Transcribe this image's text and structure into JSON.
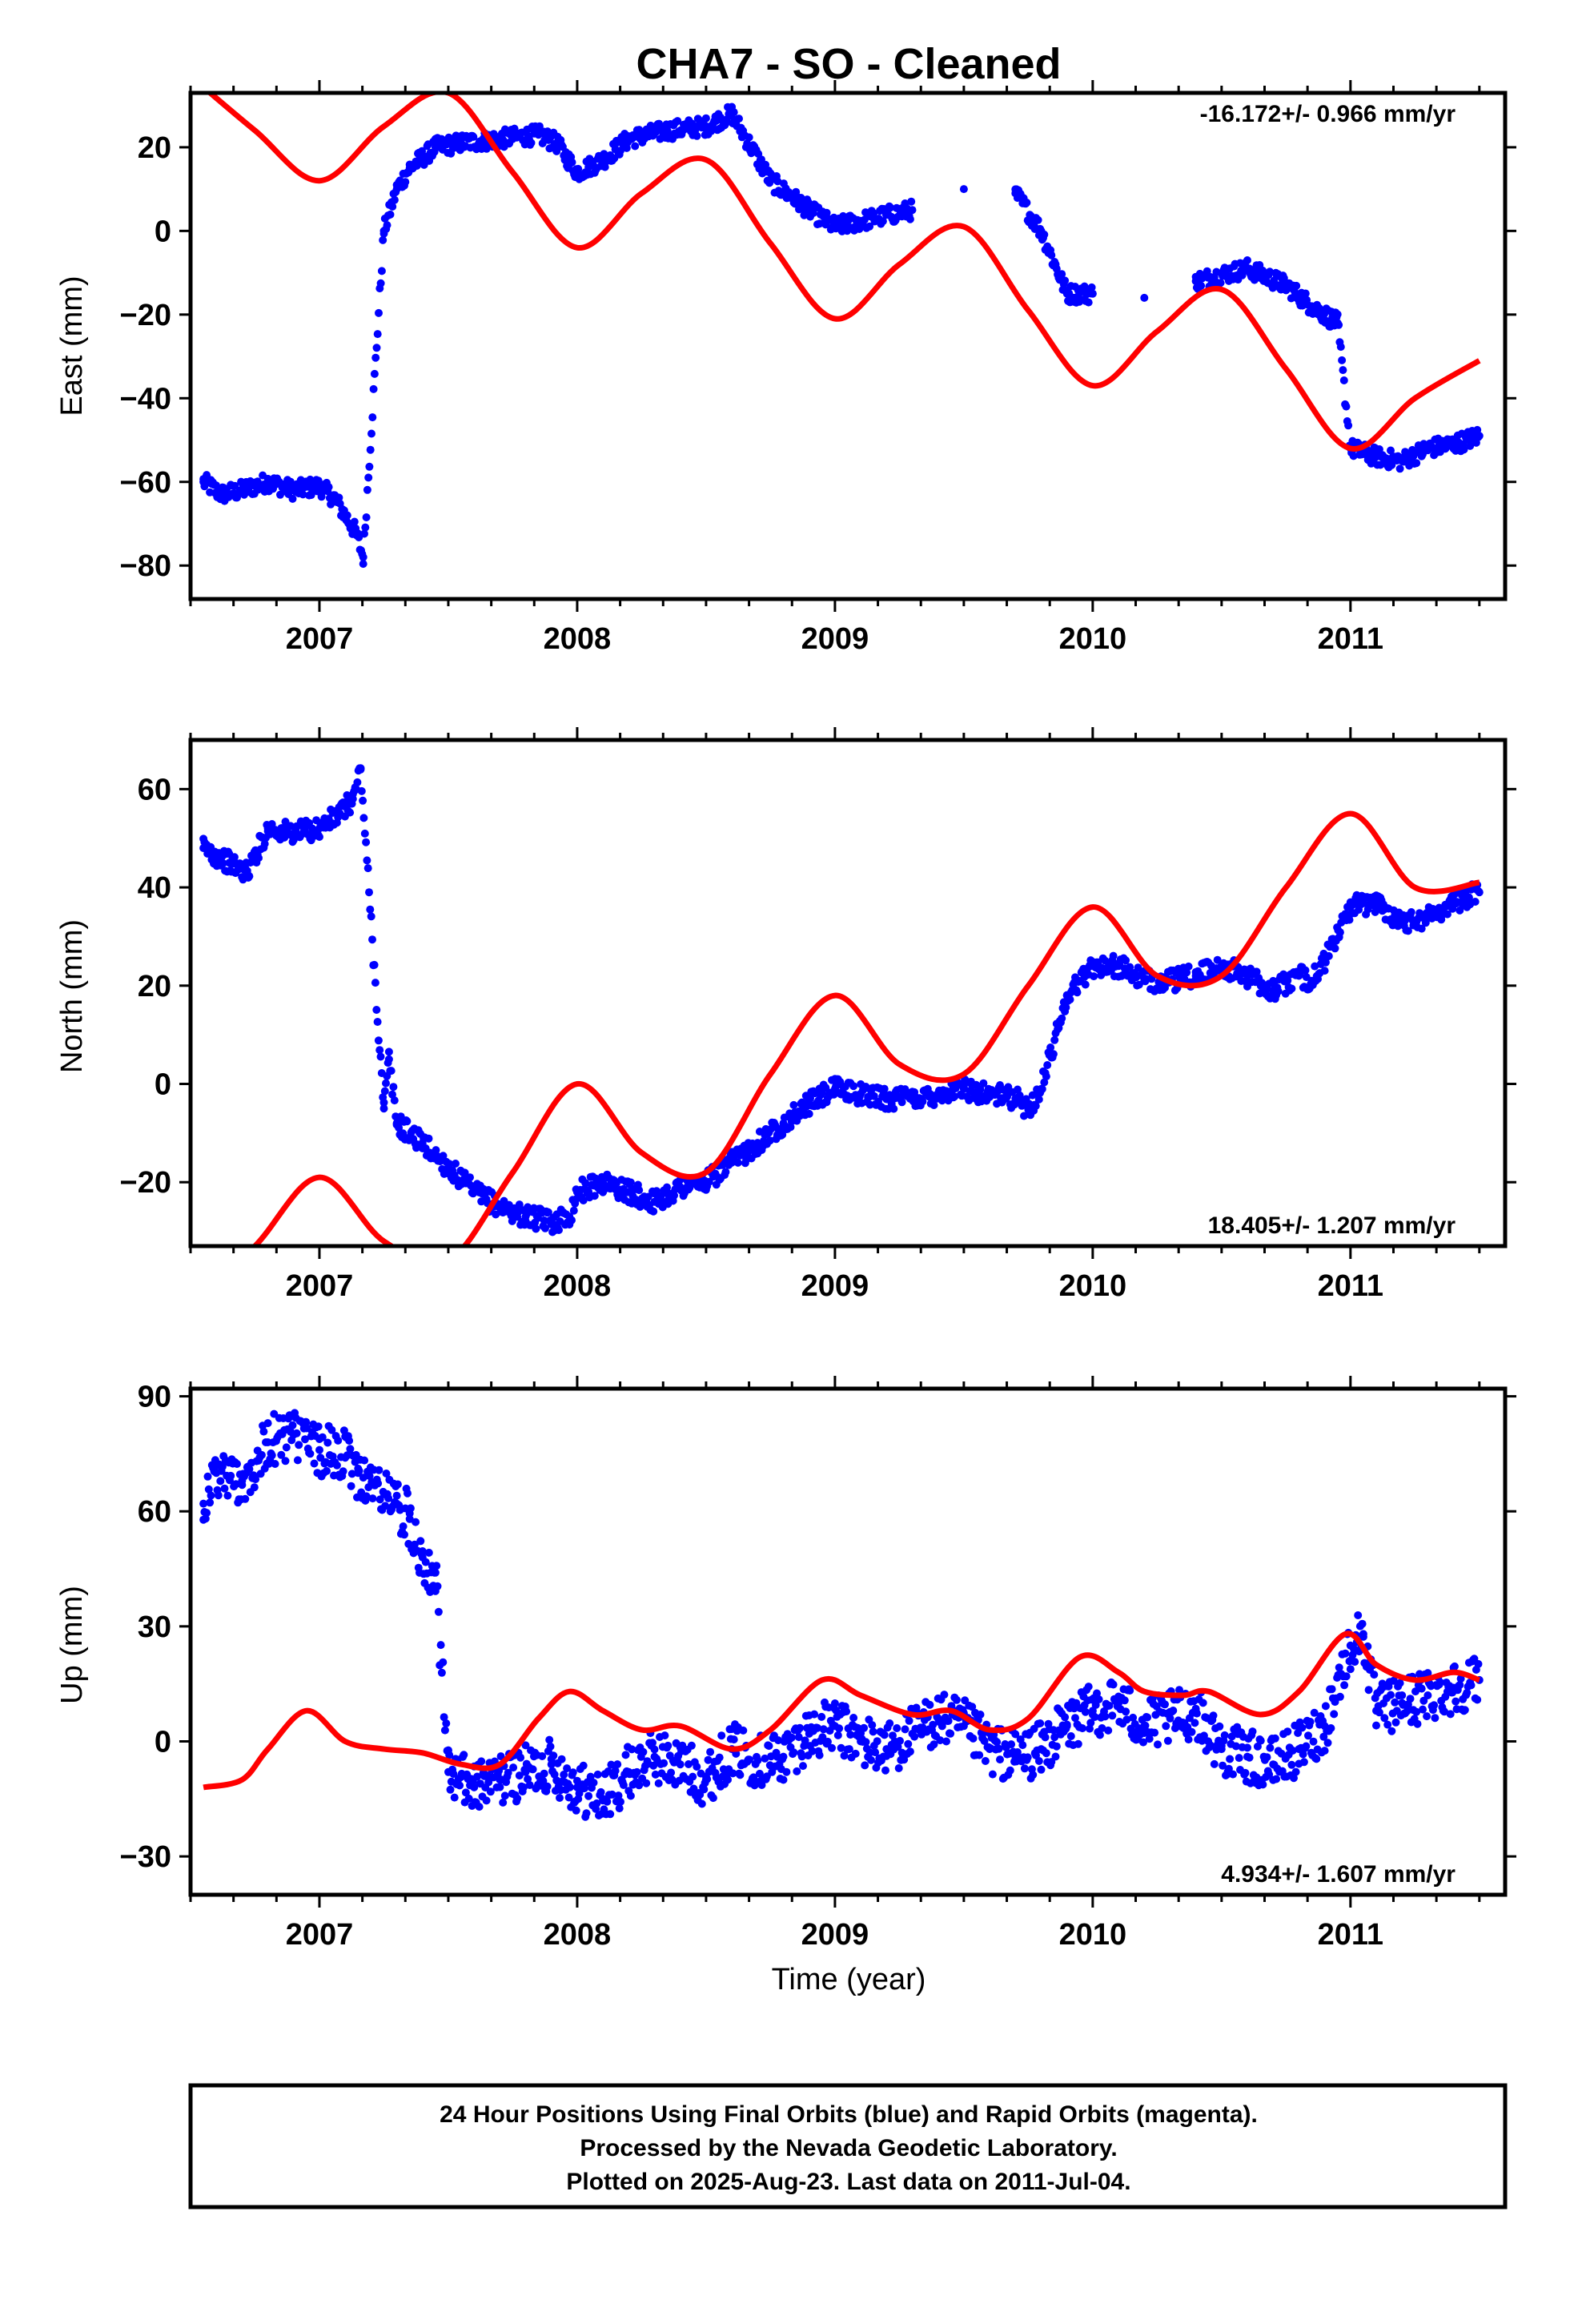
{
  "title": "CHA7  - SO - Cleaned",
  "colors": {
    "final_orbits": "#0000ff",
    "model_curve": "#ff0000",
    "frame": "#000000"
  },
  "chart_data": [
    {
      "type": "scatter",
      "ylabel": "East (mm)",
      "xlabel": "",
      "ylim": [
        -88,
        33
      ],
      "xlim": [
        2006.5,
        2011.6
      ],
      "yticks": [
        "20",
        "0",
        "−20",
        "−40",
        "−60",
        "−80"
      ],
      "ytick_values": [
        20,
        0,
        -20,
        -40,
        -60,
        -80
      ],
      "xticks": [
        "2007",
        "2008",
        "2009",
        "2010",
        "2011"
      ],
      "xtick_values": [
        2007,
        2008,
        2009,
        2010,
        2011
      ],
      "rate_label": "-16.172+/- 0.966 mm/yr",
      "rate_position": "top-right",
      "series": [
        {
          "kind": "points",
          "color": "#0000ff",
          "x": [
            2006.55,
            2006.62,
            2006.7,
            2006.8,
            2006.9,
            2007.0,
            2007.06,
            2007.1,
            2007.14,
            2007.17,
            2007.25,
            2007.3,
            2007.35,
            2007.45,
            2007.55,
            2007.7,
            2007.85,
            2007.92,
            2008.0,
            2008.1,
            2008.2,
            2008.35,
            2008.5,
            2008.6,
            2008.75,
            2008.9,
            2009.0,
            2009.15,
            2009.3,
            2009.5,
            2009.7,
            2009.8,
            2009.9,
            2010.0,
            2010.2,
            2010.4,
            2010.6,
            2010.75,
            2010.85,
            2010.95,
            2011.0,
            2011.1,
            2011.2,
            2011.3,
            2011.4,
            2011.5
          ],
          "y": [
            -60,
            -63,
            -62,
            -60,
            -62,
            -61,
            -64,
            -68,
            -72,
            -78,
            0,
            10,
            15,
            20,
            21,
            22,
            23,
            21,
            14,
            17,
            22,
            24,
            25,
            28,
            12,
            5,
            1,
            3,
            5,
            10,
            9,
            0,
            -15,
            -15,
            -16,
            -12,
            -9,
            -13,
            -18,
            -22,
            -52,
            -54,
            -55,
            -52,
            -51,
            -49
          ]
        },
        {
          "kind": "line",
          "color": "#ff0000",
          "x": [
            2006.5,
            2006.75,
            2007.0,
            2007.25,
            2007.5,
            2007.75,
            2008.0,
            2008.25,
            2008.5,
            2008.75,
            2009.0,
            2009.25,
            2009.5,
            2009.75,
            2010.0,
            2010.25,
            2010.5,
            2010.75,
            2011.0,
            2011.25,
            2011.5
          ],
          "y": [
            37,
            24,
            12,
            25,
            33,
            14,
            -4,
            9,
            17,
            -3,
            -21,
            -8,
            1,
            -19,
            -37,
            -24,
            -14,
            -33,
            -52,
            -40,
            -31
          ]
        }
      ]
    },
    {
      "type": "scatter",
      "ylabel": "North (mm)",
      "xlabel": "",
      "ylim": [
        -33,
        70
      ],
      "xlim": [
        2006.5,
        2011.6
      ],
      "yticks": [
        "60",
        "40",
        "20",
        "0",
        "−20"
      ],
      "ytick_values": [
        60,
        40,
        20,
        0,
        -20
      ],
      "xticks": [
        "2007",
        "2008",
        "2009",
        "2010",
        "2011"
      ],
      "xtick_values": [
        2007,
        2008,
        2009,
        2010,
        2011
      ],
      "rate_label": "18.405+/- 1.207 mm/yr",
      "rate_position": "bottom-right",
      "series": [
        {
          "kind": "points",
          "color": "#0000ff",
          "x": [
            2006.55,
            2006.65,
            2006.72,
            2006.8,
            2006.9,
            2007.0,
            2007.08,
            2007.13,
            2007.16,
            2007.25,
            2007.27,
            2007.3,
            2007.4,
            2007.5,
            2007.6,
            2007.7,
            2007.8,
            2007.9,
            2007.97,
            2008.0,
            2008.1,
            2008.2,
            2008.3,
            2008.4,
            2008.5,
            2008.6,
            2008.7,
            2008.8,
            2008.9,
            2009.0,
            2009.1,
            2009.2,
            2009.3,
            2009.4,
            2009.5,
            2009.6,
            2009.7,
            2009.75,
            2009.8,
            2009.9,
            2010.0,
            2010.1,
            2010.2,
            2010.3,
            2010.4,
            2010.5,
            2010.6,
            2010.7,
            2010.8,
            2010.85,
            2010.9,
            2011.0,
            2011.1,
            2011.2,
            2011.3,
            2011.4,
            2011.5
          ],
          "y": [
            48,
            45,
            43,
            52,
            51,
            52,
            55,
            58,
            64,
            -5,
            5,
            -8,
            -12,
            -17,
            -22,
            -25,
            -27,
            -28,
            -27,
            -22,
            -20,
            -22,
            -24,
            -21,
            -20,
            -16,
            -12,
            -8,
            -4,
            -1,
            -2,
            -3,
            -3,
            -2,
            -1,
            -2,
            -3,
            -5,
            -1,
            18,
            24,
            24,
            21,
            21,
            22,
            24,
            22,
            19,
            22,
            21,
            25,
            36,
            37,
            33,
            34,
            37,
            39
          ]
        },
        {
          "kind": "line",
          "color": "#ff0000",
          "x": [
            2006.5,
            2006.75,
            2007.0,
            2007.25,
            2007.5,
            2007.75,
            2008.0,
            2008.25,
            2008.5,
            2008.75,
            2009.0,
            2009.25,
            2009.5,
            2009.75,
            2010.0,
            2010.25,
            2010.5,
            2010.75,
            2011.0,
            2011.25,
            2011.5
          ],
          "y": [
            -45,
            -33,
            -19,
            -32,
            -36,
            -18,
            0,
            -14,
            -18,
            2,
            18,
            4,
            2,
            20,
            36,
            22,
            22,
            40,
            55,
            40,
            41
          ]
        }
      ]
    },
    {
      "type": "scatter",
      "ylabel": "Up (mm)",
      "xlabel": "Time (year)",
      "ylim": [
        -40,
        92
      ],
      "xlim": [
        2006.5,
        2011.6
      ],
      "yticks": [
        "90",
        "60",
        "30",
        "0",
        "−30"
      ],
      "ytick_values": [
        90,
        60,
        30,
        0,
        -30
      ],
      "xticks": [
        "2007",
        "2008",
        "2009",
        "2010",
        "2011"
      ],
      "xtick_values": [
        2007,
        2008,
        2009,
        2010,
        2011
      ],
      "rate_label": "4.934+/- 1.607 mm/yr",
      "rate_position": "bottom-right",
      "series": [
        {
          "kind": "points",
          "color": "#0000ff",
          "x": [
            2006.55,
            2006.6,
            2006.7,
            2006.8,
            2006.9,
            2007.0,
            2007.1,
            2007.15,
            2007.3,
            2007.35,
            2007.4,
            2007.45,
            2007.5,
            2007.6,
            2007.7,
            2007.8,
            2007.9,
            2008.0,
            2008.1,
            2008.2,
            2008.3,
            2008.4,
            2008.5,
            2008.6,
            2008.7,
            2008.8,
            2008.9,
            2009.0,
            2009.1,
            2009.2,
            2009.3,
            2009.4,
            2009.5,
            2009.6,
            2009.7,
            2009.8,
            2009.9,
            2010.0,
            2010.1,
            2010.2,
            2010.3,
            2010.4,
            2010.5,
            2010.6,
            2010.7,
            2010.8,
            2010.9,
            2011.0,
            2011.05,
            2011.1,
            2011.2,
            2011.3,
            2011.4,
            2011.5
          ],
          "y": [
            62,
            70,
            68,
            78,
            80,
            76,
            74,
            70,
            62,
            58,
            48,
            44,
            -8,
            -12,
            -10,
            -8,
            -6,
            -12,
            -15,
            -8,
            -4,
            -6,
            -10,
            -2,
            -5,
            -4,
            2,
            4,
            0,
            -2,
            2,
            6,
            4,
            -2,
            -4,
            -2,
            4,
            8,
            10,
            4,
            6,
            8,
            -2,
            -4,
            -6,
            -2,
            4,
            25,
            28,
            8,
            10,
            12,
            14,
            16
          ]
        },
        {
          "kind": "line",
          "color": "#ff0000",
          "x": [
            2006.55,
            2006.7,
            2006.8,
            2006.95,
            2007.1,
            2007.25,
            2007.4,
            2007.55,
            2007.7,
            2007.85,
            2007.97,
            2008.1,
            2008.25,
            2008.4,
            2008.6,
            2008.75,
            2008.95,
            2009.1,
            2009.3,
            2009.45,
            2009.6,
            2009.75,
            2009.95,
            2010.1,
            2010.2,
            2010.35,
            2010.45,
            2010.65,
            2010.8,
            2010.98,
            2011.1,
            2011.25,
            2011.4,
            2011.5
          ],
          "y": [
            -12,
            -10,
            -2,
            8,
            0,
            -2,
            -3,
            -6,
            -6,
            6,
            13,
            8,
            3,
            4,
            -2,
            3,
            16,
            12,
            7,
            8,
            3,
            6,
            22,
            18,
            13,
            12,
            13,
            7,
            13,
            28,
            20,
            16,
            18,
            16
          ]
        }
      ]
    }
  ],
  "footer": {
    "line1": "24 Hour Positions Using Final Orbits (blue) and Rapid Orbits (magenta).",
    "line2": "Processed by the Nevada Geodetic Laboratory.",
    "line3": "Plotted on 2025-Aug-23. Last data on 2011-Jul-04."
  }
}
